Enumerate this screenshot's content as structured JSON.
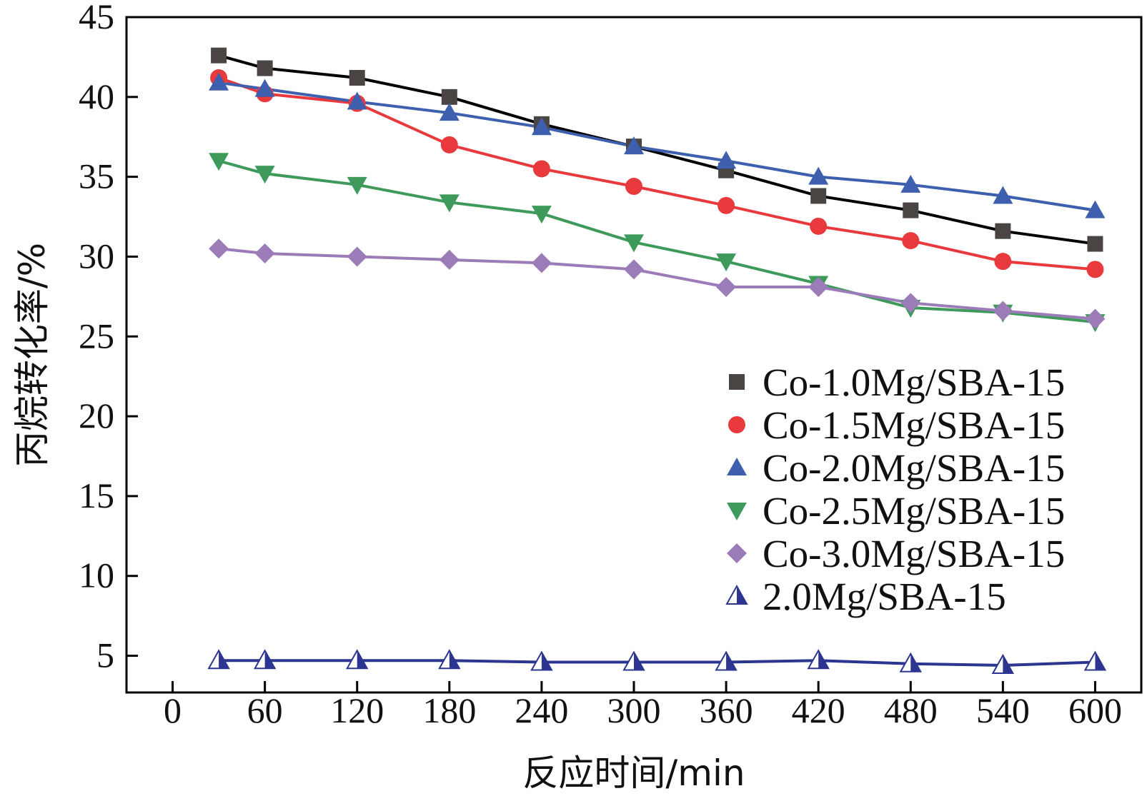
{
  "chart_data": {
    "type": "line",
    "title": "",
    "xlabel": "反应时间/min",
    "ylabel": "丙烷转化率/%",
    "xlim": [
      -30,
      630
    ],
    "ylim": [
      2.7,
      45
    ],
    "grid": false,
    "legend_position": "right",
    "x_ticks": [
      0,
      60,
      120,
      180,
      240,
      300,
      360,
      420,
      480,
      540,
      600
    ],
    "x_tick_labels": [
      "0",
      "60",
      "120",
      "180",
      "240",
      "300",
      "360",
      "420",
      "480",
      "540",
      "600"
    ],
    "y_ticks": [
      5,
      10,
      15,
      20,
      25,
      30,
      35,
      40,
      45
    ],
    "y_tick_labels": [
      "5",
      "10",
      "15",
      "20",
      "25",
      "30",
      "35",
      "40",
      "45"
    ],
    "x": [
      30,
      60,
      120,
      180,
      240,
      300,
      360,
      420,
      480,
      540,
      600
    ],
    "series": [
      {
        "name": "Co-1.0Mg/SBA-15",
        "marker": "square",
        "color": "#4a4543",
        "line_color": "#000000",
        "values": [
          42.6,
          41.8,
          41.2,
          40.0,
          38.3,
          36.9,
          35.4,
          33.8,
          32.9,
          31.6,
          30.8
        ]
      },
      {
        "name": "Co-1.5Mg/SBA-15",
        "marker": "circle",
        "color": "#e8393d",
        "line_color": "#e8393d",
        "values": [
          41.2,
          40.2,
          39.6,
          37.0,
          35.5,
          34.4,
          33.2,
          31.9,
          31.0,
          29.7,
          29.2
        ]
      },
      {
        "name": "Co-2.0Mg/SBA-15",
        "marker": "triangle-up",
        "color": "#3d5fae",
        "line_color": "#3d5fae",
        "values": [
          40.9,
          40.5,
          39.7,
          39.0,
          38.1,
          36.9,
          36.0,
          35.0,
          34.5,
          33.8,
          32.9
        ]
      },
      {
        "name": "Co-2.5Mg/SBA-15",
        "marker": "triangle-down",
        "color": "#3e9a5a",
        "line_color": "#3e9a5a",
        "values": [
          36.0,
          35.2,
          34.5,
          33.4,
          32.7,
          30.9,
          29.7,
          28.3,
          26.8,
          26.5,
          25.9
        ]
      },
      {
        "name": "Co-3.0Mg/SBA-15",
        "marker": "diamond",
        "color": "#9b7bb8",
        "line_color": "#9b7bb8",
        "values": [
          30.5,
          30.2,
          30.0,
          29.8,
          29.6,
          29.2,
          28.1,
          28.1,
          27.1,
          26.6,
          26.1
        ]
      },
      {
        "name": "2.0Mg/SBA-15",
        "marker": "half-triangle",
        "color": "#2c3590",
        "line_color": "#2c3590",
        "values": [
          4.7,
          4.7,
          4.7,
          4.7,
          4.6,
          4.6,
          4.6,
          4.7,
          4.5,
          4.4,
          4.6
        ]
      }
    ]
  }
}
